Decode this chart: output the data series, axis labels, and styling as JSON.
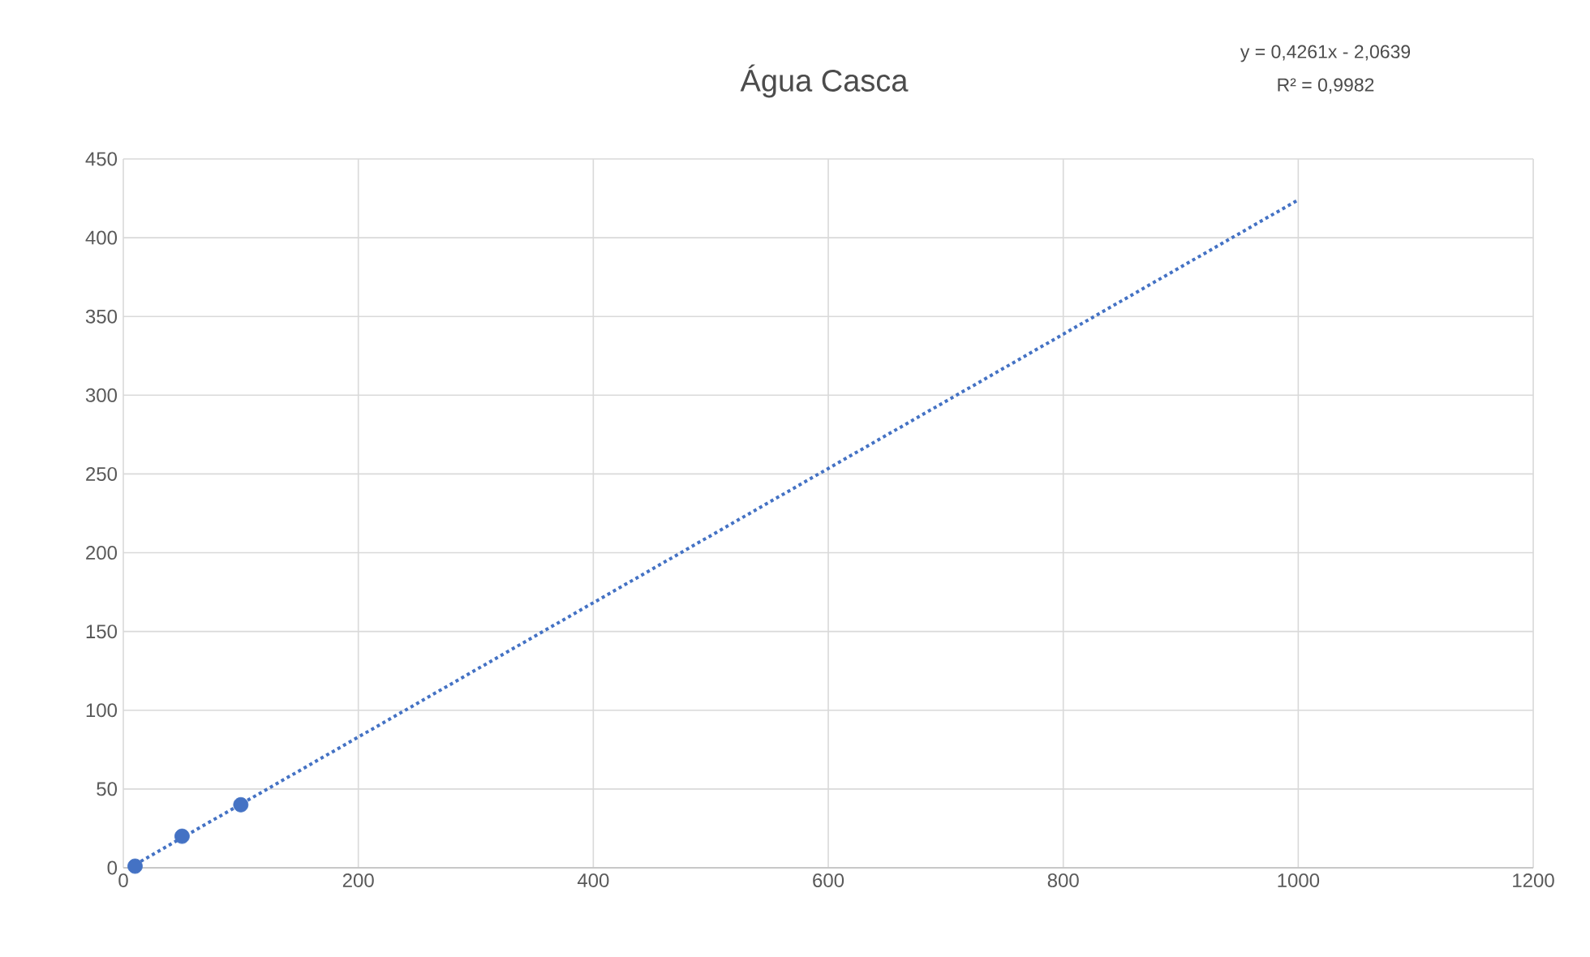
{
  "chart_data": {
    "type": "scatter",
    "title": "Água Casca",
    "annotations": [
      "y = 0,4261x - 2,0639",
      "R² = 0,9982"
    ],
    "xlim": [
      0,
      1200
    ],
    "ylim": [
      0,
      450
    ],
    "xticks": [
      0,
      200,
      400,
      600,
      800,
      1000,
      1200
    ],
    "yticks": [
      0,
      50,
      100,
      150,
      200,
      250,
      300,
      350,
      400,
      450
    ],
    "grid": true,
    "series": [
      {
        "color": "#4472c4",
        "marker": "circle",
        "x": [
          10,
          50,
          100
        ],
        "values": [
          1,
          20,
          40
        ]
      },
      {
        "type": "line",
        "color": "#4472c4",
        "marker": "none",
        "line_style": "dotted",
        "x": [
          10,
          1000
        ],
        "values": [
          2,
          424
        ]
      }
    ]
  }
}
